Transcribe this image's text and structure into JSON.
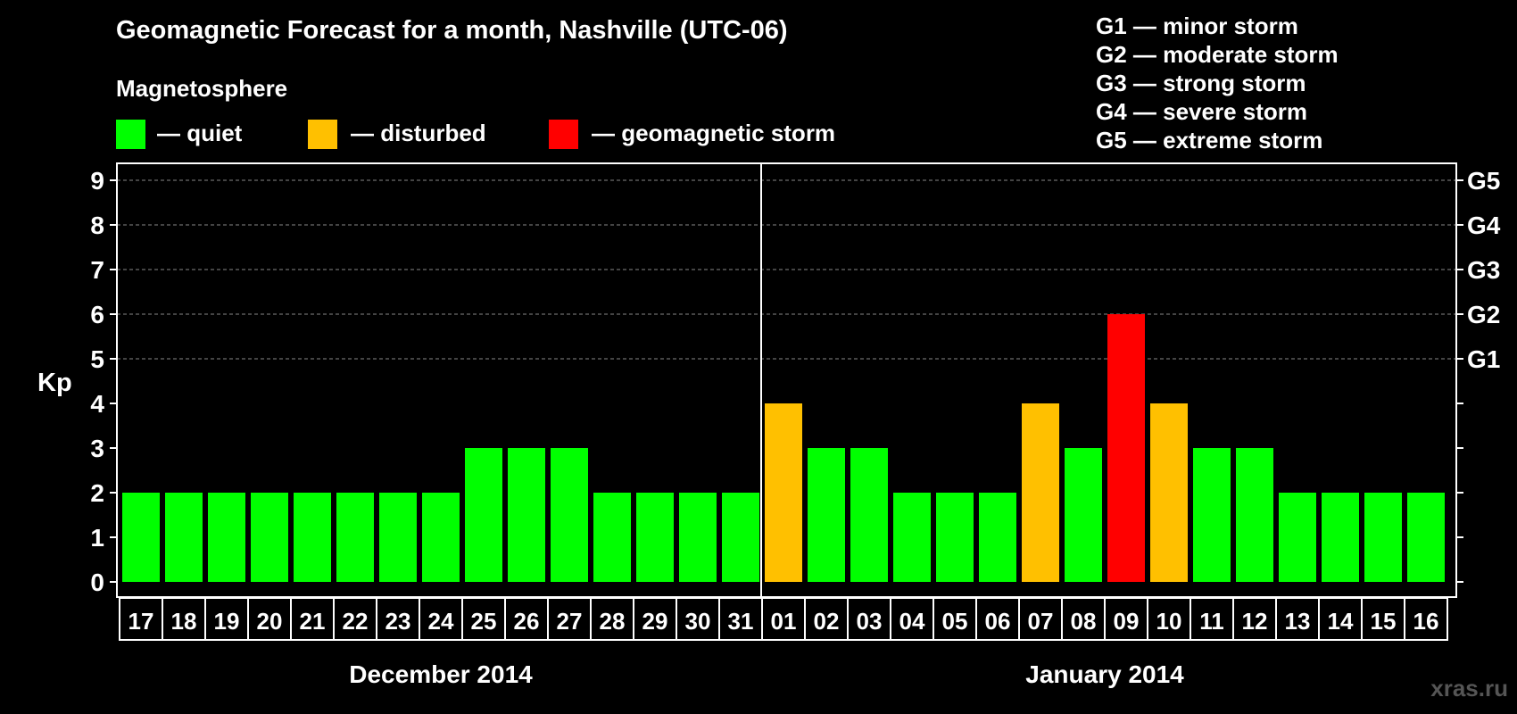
{
  "title": "Geomagnetic Forecast for a month, Nashville (UTC-06)",
  "legend": {
    "heading": "Magnetosphere",
    "items": [
      {
        "label": "— quiet",
        "color": "#00ff00"
      },
      {
        "label": "— disturbed",
        "color": "#ffc000"
      },
      {
        "label": "— geomagnetic storm",
        "color": "#ff0000"
      }
    ]
  },
  "storm_levels": [
    "G1 — minor storm",
    "G2 — moderate storm",
    "G3 — strong storm",
    "G4 — severe storm",
    "G5 — extreme storm"
  ],
  "watermark": "xras.ru",
  "chart_data": {
    "type": "bar",
    "ylabel": "Kp",
    "ylim": [
      0,
      9
    ],
    "y_ticks": [
      0,
      1,
      2,
      3,
      4,
      5,
      6,
      7,
      8,
      9
    ],
    "right_ticks": [
      {
        "value": 5,
        "label": "G1"
      },
      {
        "value": 6,
        "label": "G2"
      },
      {
        "value": 7,
        "label": "G3"
      },
      {
        "value": 8,
        "label": "G4"
      },
      {
        "value": 9,
        "label": "G5"
      }
    ],
    "grid_values": [
      5,
      6,
      7,
      8,
      9
    ],
    "categories": [
      "17",
      "18",
      "19",
      "20",
      "21",
      "22",
      "23",
      "24",
      "25",
      "26",
      "27",
      "28",
      "29",
      "30",
      "31",
      "01",
      "02",
      "03",
      "04",
      "05",
      "06",
      "07",
      "08",
      "09",
      "10",
      "11",
      "12",
      "13",
      "14",
      "15",
      "16"
    ],
    "values": [
      2,
      2,
      2,
      2,
      2,
      2,
      2,
      2,
      3,
      3,
      3,
      2,
      2,
      2,
      2,
      4,
      3,
      3,
      2,
      2,
      2,
      4,
      3,
      6,
      4,
      3,
      3,
      2,
      2,
      2,
      2
    ],
    "months": [
      {
        "label": "December 2014",
        "from": 0,
        "to": 14
      },
      {
        "label": "January 2014",
        "from": 15,
        "to": 30
      }
    ],
    "colors": {
      "quiet": "#00ff00",
      "disturbed": "#ffc000",
      "storm": "#ff0000"
    }
  }
}
